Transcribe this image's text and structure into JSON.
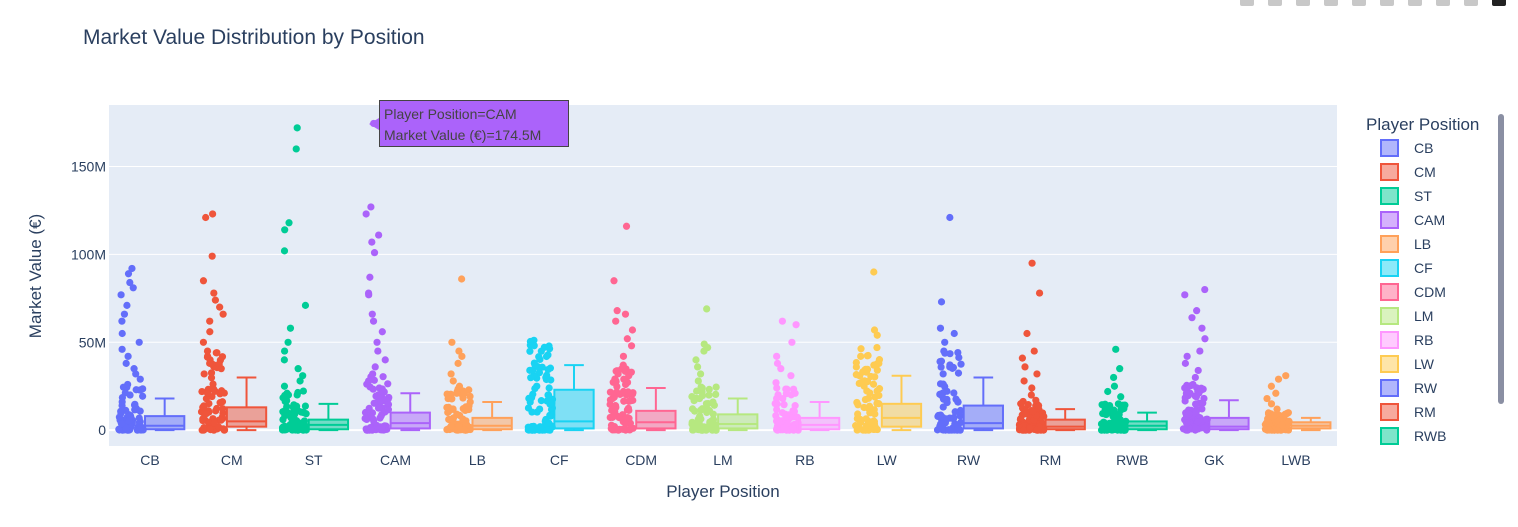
{
  "chart_data": {
    "type": "box",
    "title": "Market Value Distribution by Position",
    "xlabel": "Player Position",
    "ylabel": "Market Value (€)",
    "ylim": [
      -9000000,
      185000000
    ],
    "yticks": [
      {
        "value": 0,
        "label": "0"
      },
      {
        "value": 50000000,
        "label": "50M"
      },
      {
        "value": 100000000,
        "label": "100M"
      },
      {
        "value": 150000000,
        "label": "150M"
      }
    ],
    "grid": true,
    "points": "all",
    "legend_title": "Player Position",
    "legend_position": "right",
    "categories": [
      "CB",
      "CM",
      "ST",
      "CAM",
      "LB",
      "CF",
      "CDM",
      "LM",
      "RB",
      "LW",
      "RW",
      "RM",
      "RWB",
      "GK",
      "LWB"
    ],
    "series": [
      {
        "name": "CB",
        "color": "#636efa",
        "box": {
          "lower_fence": 0,
          "q1": 500000,
          "median": 2500000,
          "q3": 8000000,
          "upper_fence": 18000000
        },
        "outliers": [
          20000000,
          23000000,
          26000000,
          29000000,
          32000000,
          35000000,
          38000000,
          42000000,
          46000000,
          50000000,
          55000000,
          62000000,
          66000000,
          71000000,
          77000000,
          81000000,
          84000000,
          89000000,
          92000000
        ]
      },
      {
        "name": "CM",
        "color": "#ef553b",
        "box": {
          "lower_fence": 0,
          "q1": 2000000,
          "median": 5000000,
          "q3": 13000000,
          "upper_fence": 30000000
        },
        "outliers": [
          32000000,
          35000000,
          38000000,
          42000000,
          45000000,
          50000000,
          56000000,
          62000000,
          66000000,
          70000000,
          74000000,
          78000000,
          85000000,
          99000000,
          121000000,
          123000000
        ]
      },
      {
        "name": "ST",
        "color": "#00cc96",
        "box": {
          "lower_fence": 0,
          "q1": 500000,
          "median": 3000000,
          "q3": 6000000,
          "upper_fence": 15000000
        },
        "outliers": [
          18000000,
          21000000,
          25000000,
          28000000,
          31000000,
          35000000,
          40000000,
          45000000,
          50000000,
          58000000,
          71000000,
          102000000,
          114000000,
          118000000,
          160000000,
          172000000
        ]
      },
      {
        "name": "CAM",
        "color": "#ab63fa",
        "box": {
          "lower_fence": 0,
          "q1": 1000000,
          "median": 4000000,
          "q3": 10000000,
          "upper_fence": 21000000
        },
        "outliers": [
          24000000,
          28000000,
          32000000,
          36000000,
          40000000,
          45000000,
          50000000,
          56000000,
          62000000,
          66000000,
          77000000,
          78000000,
          87000000,
          101000000,
          107000000,
          111000000,
          123000000,
          127000000,
          171500000,
          174500000
        ]
      },
      {
        "name": "LB",
        "color": "#ffa15a",
        "box": {
          "lower_fence": 0,
          "q1": 500000,
          "median": 2500000,
          "q3": 7000000,
          "upper_fence": 16000000
        },
        "outliers": [
          18000000,
          21000000,
          25000000,
          28000000,
          32000000,
          38000000,
          42000000,
          45000000,
          50000000,
          86000000
        ]
      },
      {
        "name": "CF",
        "color": "#19d3f3",
        "box": {
          "lower_fence": 0,
          "q1": 1000000,
          "median": 5000000,
          "q3": 23000000,
          "upper_fence": 37000000
        },
        "outliers": [
          0,
          2000000,
          4000000,
          8000000,
          12000000,
          16000000,
          20000000,
          24000000,
          30000000,
          34000000,
          37000000
        ]
      },
      {
        "name": "CDM",
        "color": "#ff6692",
        "box": {
          "lower_fence": 0,
          "q1": 1000000,
          "median": 4500000,
          "q3": 11000000,
          "upper_fence": 24000000
        },
        "outliers": [
          26000000,
          29000000,
          33000000,
          37000000,
          42000000,
          48000000,
          52000000,
          57000000,
          62000000,
          66000000,
          68000000,
          85000000,
          116000000
        ]
      },
      {
        "name": "LM",
        "color": "#b6e880",
        "box": {
          "lower_fence": 0,
          "q1": 1000000,
          "median": 3500000,
          "q3": 9000000,
          "upper_fence": 18000000
        },
        "outliers": [
          20000000,
          24000000,
          28000000,
          32000000,
          36000000,
          40000000,
          45000000,
          47000000,
          49000000,
          69000000
        ]
      },
      {
        "name": "RB",
        "color": "#ff97ff",
        "box": {
          "lower_fence": 0,
          "q1": 500000,
          "median": 3000000,
          "q3": 7000000,
          "upper_fence": 16000000
        },
        "outliers": [
          18000000,
          21000000,
          24000000,
          27000000,
          31000000,
          35000000,
          38000000,
          42000000,
          50000000,
          60000000,
          62000000
        ]
      },
      {
        "name": "LW",
        "color": "#fecb52",
        "box": {
          "lower_fence": 0,
          "q1": 2000000,
          "median": 7000000,
          "q3": 15000000,
          "upper_fence": 31000000
        },
        "outliers": [
          33000000,
          37000000,
          42000000,
          47000000,
          54000000,
          57000000,
          90000000
        ]
      },
      {
        "name": "RW",
        "color": "#636efa",
        "box": {
          "lower_fence": 0,
          "q1": 1000000,
          "median": 4000000,
          "q3": 14000000,
          "upper_fence": 30000000
        },
        "outliers": [
          32000000,
          36000000,
          45000000,
          50000000,
          55000000,
          58000000,
          73000000,
          121000000
        ]
      },
      {
        "name": "RM",
        "color": "#ef553b",
        "box": {
          "lower_fence": 0,
          "q1": 500000,
          "median": 2000000,
          "q3": 6000000,
          "upper_fence": 12000000
        },
        "outliers": [
          14000000,
          17000000,
          20000000,
          24000000,
          28000000,
          32000000,
          36000000,
          41000000,
          45000000,
          55000000,
          78000000,
          95000000
        ]
      },
      {
        "name": "RWB",
        "color": "#00cc96",
        "box": {
          "lower_fence": 0,
          "q1": 500000,
          "median": 2500000,
          "q3": 5000000,
          "upper_fence": 10000000
        },
        "outliers": [
          12000000,
          15000000,
          19000000,
          22000000,
          25000000,
          30000000,
          35000000,
          46000000
        ]
      },
      {
        "name": "GK",
        "color": "#ab63fa",
        "box": {
          "lower_fence": 0,
          "q1": 500000,
          "median": 2000000,
          "q3": 7000000,
          "upper_fence": 17000000
        },
        "outliers": [
          19000000,
          22000000,
          26000000,
          30000000,
          34000000,
          38000000,
          42000000,
          45000000,
          52000000,
          58000000,
          64000000,
          68000000,
          77000000,
          80000000
        ]
      },
      {
        "name": "LWB",
        "color": "#ffa15a",
        "box": {
          "lower_fence": 0,
          "q1": 1000000,
          "median": 2500000,
          "q3": 4500000,
          "upper_fence": 7000000
        },
        "outliers": [
          9000000,
          12000000,
          15000000,
          18000000,
          21000000,
          25000000,
          29000000,
          31000000
        ]
      }
    ],
    "hover": {
      "line1": "Player Position=CAM",
      "line2": "Market Value (€)=174.5M"
    }
  }
}
